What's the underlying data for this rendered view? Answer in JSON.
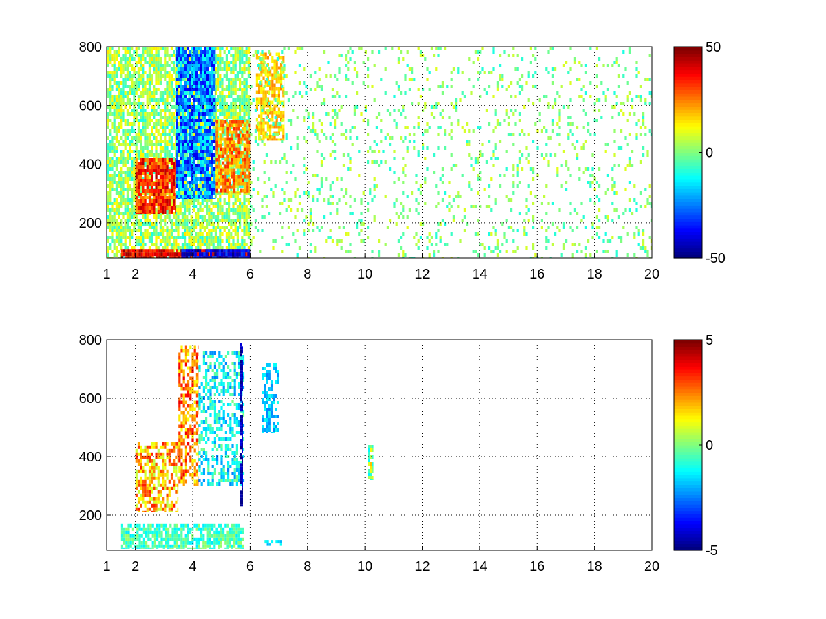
{
  "chart_data": [
    {
      "type": "heatmap",
      "title": "",
      "xlabel": "",
      "ylabel": "",
      "xlim": [
        1,
        20
      ],
      "ylim": [
        80,
        800
      ],
      "x_ticks": [
        1,
        2,
        4,
        6,
        8,
        10,
        12,
        14,
        16,
        18,
        20
      ],
      "y_ticks": [
        200,
        400,
        600,
        800
      ],
      "grid": true,
      "colormap": "jet",
      "colorbar": {
        "range": [
          -50,
          50
        ],
        "ticks": [
          50,
          0,
          -50
        ],
        "placement": "right"
      },
      "regions": [
        {
          "x": [
            1.0,
            6.0
          ],
          "y": [
            80,
            800
          ],
          "value_range": [
            -10,
            15
          ],
          "density": 0.75
        },
        {
          "x": [
            2.0,
            3.4
          ],
          "y": [
            230,
            420
          ],
          "value_range": [
            20,
            45
          ],
          "density": 0.85
        },
        {
          "x": [
            3.4,
            4.8
          ],
          "y": [
            280,
            800
          ],
          "value_range": [
            -40,
            -10
          ],
          "density": 0.85
        },
        {
          "x": [
            4.8,
            6.0
          ],
          "y": [
            300,
            550
          ],
          "value_range": [
            15,
            35
          ],
          "density": 0.7
        },
        {
          "x": [
            1.5,
            6.0
          ],
          "y": [
            80,
            110
          ],
          "value_range": [
            30,
            50
          ],
          "density": 0.95
        },
        {
          "x": [
            3.6,
            6.0
          ],
          "y": [
            80,
            110
          ],
          "value_range": [
            -50,
            -30
          ],
          "density": 0.95
        },
        {
          "x": [
            6.2,
            7.2
          ],
          "y": [
            480,
            780
          ],
          "value_range": [
            10,
            25
          ],
          "density": 0.7
        },
        {
          "x": [
            6.0,
            20.0
          ],
          "y": [
            80,
            800
          ],
          "value_range": [
            -10,
            10
          ],
          "density": 0.12
        }
      ]
    },
    {
      "type": "heatmap",
      "title": "",
      "xlabel": "",
      "ylabel": "",
      "xlim": [
        1,
        20
      ],
      "ylim": [
        80,
        800
      ],
      "x_ticks": [
        1,
        2,
        4,
        6,
        8,
        10,
        12,
        14,
        16,
        18,
        20
      ],
      "y_ticks": [
        200,
        400,
        600,
        800
      ],
      "grid": true,
      "colormap": "jet",
      "colorbar": {
        "range": [
          -5,
          5
        ],
        "ticks": [
          5,
          0,
          -5
        ],
        "placement": "right"
      },
      "regions": [
        {
          "x": [
            2.0,
            3.5
          ],
          "y": [
            210,
            450
          ],
          "value_range": [
            0.5,
            3.5
          ],
          "density": 0.65
        },
        {
          "x": [
            3.5,
            4.2
          ],
          "y": [
            300,
            780
          ],
          "value_range": [
            1,
            4
          ],
          "density": 0.55
        },
        {
          "x": [
            4.2,
            5.8
          ],
          "y": [
            300,
            760
          ],
          "value_range": [
            -2.5,
            0
          ],
          "density": 0.45
        },
        {
          "x": [
            1.5,
            5.8
          ],
          "y": [
            85,
            170
          ],
          "value_range": [
            -1.5,
            0.3
          ],
          "density": 0.75
        },
        {
          "x": [
            5.65,
            5.75
          ],
          "y": [
            230,
            790
          ],
          "value_range": [
            -5,
            -4
          ],
          "density": 0.85
        },
        {
          "x": [
            6.4,
            7.0
          ],
          "y": [
            480,
            720
          ],
          "value_range": [
            -2.5,
            -1
          ],
          "density": 0.5
        },
        {
          "x": [
            6.5,
            7.1
          ],
          "y": [
            95,
            115
          ],
          "value_range": [
            -2,
            -1
          ],
          "density": 0.6
        },
        {
          "x": [
            10.1,
            10.3
          ],
          "y": [
            320,
            440
          ],
          "value_range": [
            -1.5,
            2
          ],
          "density": 0.6
        }
      ]
    }
  ]
}
